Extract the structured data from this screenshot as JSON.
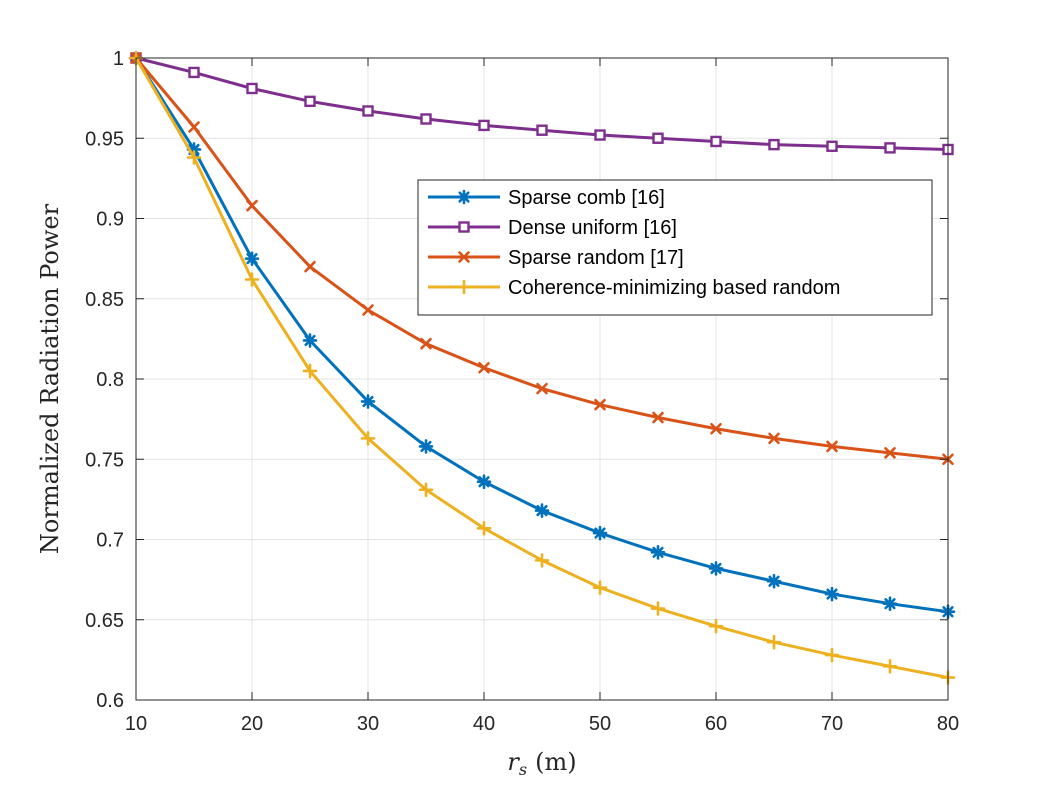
{
  "chart_data": {
    "type": "line",
    "title": "",
    "xlabel_var": "r",
    "xlabel_sub": "s",
    "xlabel_unit": "(m)",
    "ylabel": "Normalized Radiation Power",
    "xlim": [
      10,
      80
    ],
    "ylim": [
      0.6,
      1.0
    ],
    "xticks": [
      10,
      20,
      30,
      40,
      50,
      60,
      70,
      80
    ],
    "yticks": [
      0.6,
      0.65,
      0.7,
      0.75,
      0.8,
      0.85,
      0.9,
      0.95,
      1.0
    ],
    "ytick_labels": [
      "0.6",
      "0.65",
      "0.7",
      "0.75",
      "0.8",
      "0.85",
      "0.9",
      "0.95",
      "1"
    ],
    "grid": true,
    "legend_position": "upper-right",
    "x": [
      10,
      15,
      20,
      25,
      30,
      35,
      40,
      45,
      50,
      55,
      60,
      65,
      70,
      75,
      80
    ],
    "series": [
      {
        "name": "Sparse comb [16]",
        "color": "#0072BD",
        "marker": "asterisk",
        "values": [
          1.0,
          0.943,
          0.875,
          0.824,
          0.786,
          0.758,
          0.736,
          0.718,
          0.704,
          0.692,
          0.682,
          0.674,
          0.666,
          0.66,
          0.655
        ]
      },
      {
        "name": "Dense uniform [16]",
        "color": "#7E2F8E",
        "marker": "square",
        "values": [
          1.0,
          0.991,
          0.981,
          0.973,
          0.967,
          0.962,
          0.958,
          0.955,
          0.952,
          0.95,
          0.948,
          0.946,
          0.945,
          0.944,
          0.943
        ]
      },
      {
        "name": "Sparse random [17]",
        "color": "#D95319",
        "marker": "x",
        "values": [
          1.0,
          0.957,
          0.908,
          0.87,
          0.843,
          0.822,
          0.807,
          0.794,
          0.784,
          0.776,
          0.769,
          0.763,
          0.758,
          0.754,
          0.75
        ]
      },
      {
        "name": "Coherence-minimizing based random",
        "color": "#EDB120",
        "marker": "plus",
        "values": [
          1.0,
          0.938,
          0.862,
          0.805,
          0.763,
          0.731,
          0.707,
          0.687,
          0.67,
          0.657,
          0.646,
          0.636,
          0.628,
          0.621,
          0.614
        ]
      }
    ]
  }
}
